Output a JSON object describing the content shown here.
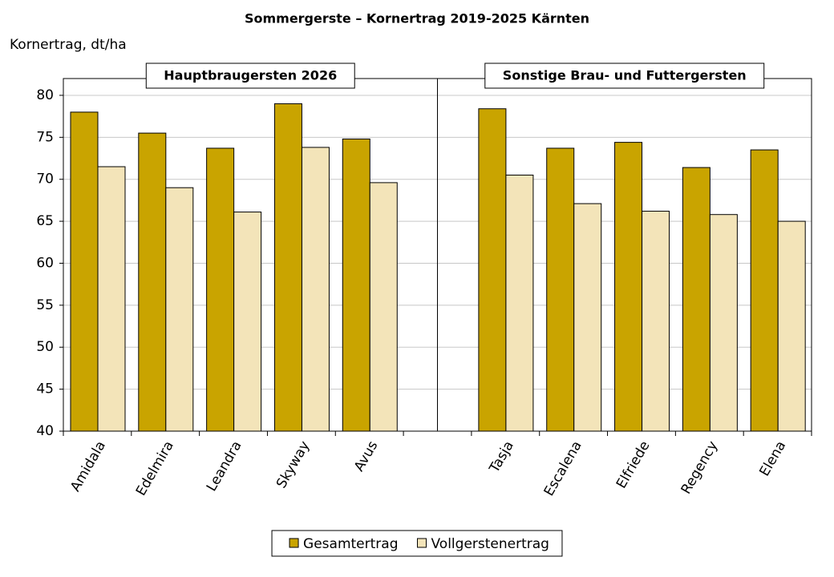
{
  "chart_data": {
    "type": "bar",
    "title": "Sommergerste – Kornertrag 2019-2025 Kärnten",
    "y_label": "Kornertrag, dt/ha",
    "annotations": [
      "Hauptbraugersten 2026",
      "Sonstige Brau- und Futtergersten"
    ],
    "categories": [
      "Amidala",
      "Edelmira",
      "Leandra",
      "Skyway",
      "Avus",
      null,
      "Tasja",
      "Escalena",
      "Elfriede",
      "Regency",
      "Elena"
    ],
    "series": [
      {
        "name": "Gesamtertrag",
        "color": "#c9a400",
        "values": [
          78.0,
          75.5,
          73.7,
          79.0,
          74.8,
          null,
          78.4,
          73.7,
          74.4,
          71.4,
          73.5
        ]
      },
      {
        "name": "Vollgerstenertrag",
        "color": "#f3e4b9",
        "values": [
          71.5,
          69.0,
          66.1,
          73.8,
          69.6,
          null,
          70.5,
          67.1,
          66.2,
          65.8,
          65.0
        ]
      }
    ],
    "ylim": [
      40,
      82
    ],
    "yticks": [
      40,
      45,
      50,
      55,
      60,
      65,
      70,
      75,
      80
    ],
    "grid": true,
    "legend": "bottom"
  }
}
